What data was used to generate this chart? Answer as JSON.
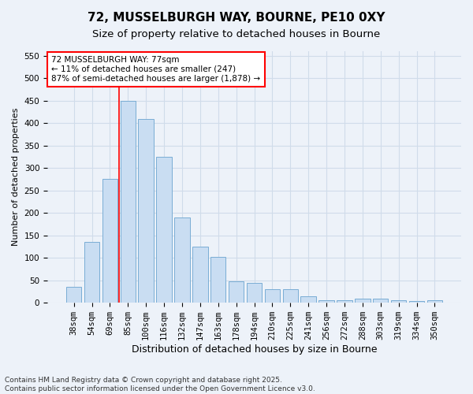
{
  "title": "72, MUSSELBURGH WAY, BOURNE, PE10 0XY",
  "subtitle": "Size of property relative to detached houses in Bourne",
  "xlabel": "Distribution of detached houses by size in Bourne",
  "ylabel": "Number of detached properties",
  "categories": [
    "38sqm",
    "54sqm",
    "69sqm",
    "85sqm",
    "100sqm",
    "116sqm",
    "132sqm",
    "147sqm",
    "163sqm",
    "178sqm",
    "194sqm",
    "210sqm",
    "225sqm",
    "241sqm",
    "256sqm",
    "272sqm",
    "288sqm",
    "303sqm",
    "319sqm",
    "334sqm",
    "350sqm"
  ],
  "values": [
    35,
    135,
    275,
    450,
    410,
    325,
    190,
    125,
    103,
    47,
    45,
    30,
    30,
    15,
    5,
    5,
    10,
    10,
    5,
    4,
    5
  ],
  "bar_color": "#c9ddf2",
  "bar_edge_color": "#7aadd4",
  "grid_color": "#d0dcea",
  "background_color": "#edf2f9",
  "property_line_x": 2.5,
  "annotation_text": "72 MUSSELBURGH WAY: 77sqm\n← 11% of detached houses are smaller (247)\n87% of semi-detached houses are larger (1,878) →",
  "annotation_box_color": "white",
  "annotation_box_edge_color": "red",
  "property_line_color": "red",
  "ylim": [
    0,
    560
  ],
  "yticks": [
    0,
    50,
    100,
    150,
    200,
    250,
    300,
    350,
    400,
    450,
    500,
    550
  ],
  "footer": "Contains HM Land Registry data © Crown copyright and database right 2025.\nContains public sector information licensed under the Open Government Licence v3.0.",
  "title_fontsize": 11,
  "subtitle_fontsize": 9.5,
  "xlabel_fontsize": 9,
  "ylabel_fontsize": 8,
  "tick_fontsize": 7.5,
  "annotation_fontsize": 7.5,
  "footer_fontsize": 6.5
}
